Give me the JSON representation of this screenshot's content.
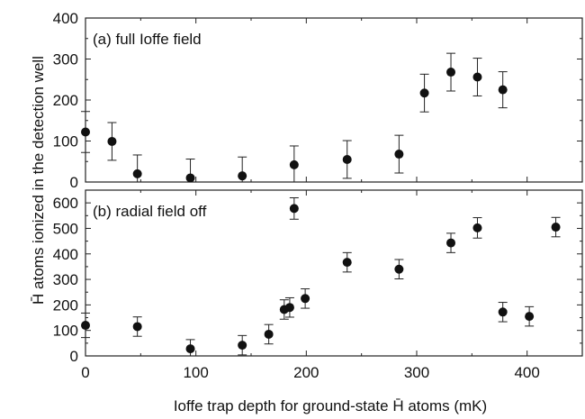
{
  "figure": {
    "ylabel": "H̄ atoms ionized in the detection well",
    "xlabel": "Ioffe trap depth for ground-state H̄ atoms (mK)"
  },
  "chart_data": [
    {
      "type": "scatter",
      "panel_label": "(a) full Ioffe field",
      "xlim": [
        0,
        450
      ],
      "ylim": [
        0,
        400
      ],
      "xticks": [
        0,
        100,
        200,
        300,
        400
      ],
      "yticks": [
        0,
        100,
        200,
        300,
        400
      ],
      "x_tick_labels_shown": false,
      "error_bars": true,
      "grid": false,
      "points": [
        {
          "x": 0,
          "y": 122,
          "err": 50
        },
        {
          "x": 24,
          "y": 99,
          "err": 46
        },
        {
          "x": 47,
          "y": 20,
          "err": 46
        },
        {
          "x": 95,
          "y": 10,
          "err": 46
        },
        {
          "x": 142,
          "y": 15,
          "err": 46
        },
        {
          "x": 189,
          "y": 42,
          "err": 46
        },
        {
          "x": 237,
          "y": 55,
          "err": 46
        },
        {
          "x": 284,
          "y": 68,
          "err": 46
        },
        {
          "x": 307,
          "y": 217,
          "err": 46
        },
        {
          "x": 331,
          "y": 268,
          "err": 46
        },
        {
          "x": 355,
          "y": 256,
          "err": 46
        },
        {
          "x": 378,
          "y": 225,
          "err": 44
        }
      ]
    },
    {
      "type": "scatter",
      "panel_label": "(b) radial field off",
      "xlim": [
        0,
        450
      ],
      "ylim": [
        0,
        650
      ],
      "xticks": [
        0,
        100,
        200,
        300,
        400
      ],
      "yticks": [
        0,
        100,
        200,
        300,
        400,
        500,
        600
      ],
      "x_tick_labels_shown": true,
      "error_bars": true,
      "grid": false,
      "points": [
        {
          "x": 0,
          "y": 120,
          "err": 48
        },
        {
          "x": 47,
          "y": 115,
          "err": 38
        },
        {
          "x": 95,
          "y": 28,
          "err": 36
        },
        {
          "x": 142,
          "y": 42,
          "err": 38
        },
        {
          "x": 166,
          "y": 85,
          "err": 38
        },
        {
          "x": 180,
          "y": 182,
          "err": 38
        },
        {
          "x": 185,
          "y": 190,
          "err": 38
        },
        {
          "x": 189,
          "y": 578,
          "err": 42
        },
        {
          "x": 199,
          "y": 225,
          "err": 38
        },
        {
          "x": 237,
          "y": 367,
          "err": 38
        },
        {
          "x": 284,
          "y": 340,
          "err": 38
        },
        {
          "x": 331,
          "y": 443,
          "err": 38
        },
        {
          "x": 355,
          "y": 502,
          "err": 40
        },
        {
          "x": 378,
          "y": 172,
          "err": 38
        },
        {
          "x": 402,
          "y": 155,
          "err": 38
        },
        {
          "x": 426,
          "y": 505,
          "err": 38
        }
      ]
    }
  ]
}
